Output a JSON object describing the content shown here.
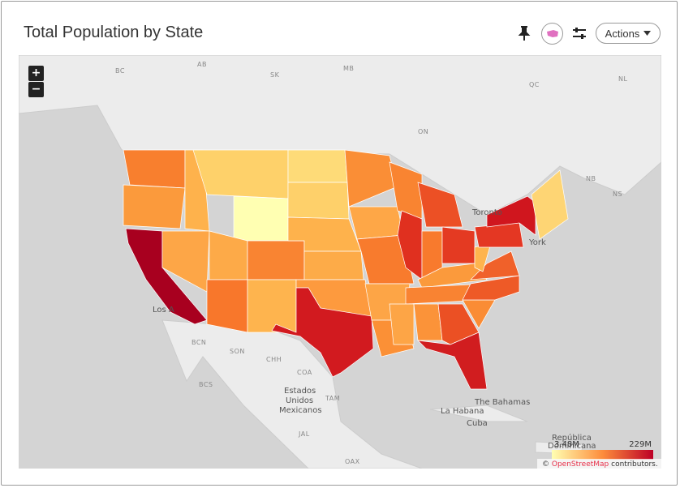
{
  "header": {
    "title": "Total Population by State",
    "actions": "Actions"
  },
  "controls": {
    "zoom_in": "+",
    "zoom_out": "−"
  },
  "map": {
    "labels": [
      "BC",
      "AB",
      "SK",
      "MB",
      "ON",
      "QC",
      "NL",
      "NB",
      "NS",
      "Toronto",
      "Los A",
      "York",
      "BCN",
      "SON",
      "CHH",
      "COA",
      "BCS",
      "TAM",
      "Estados",
      "Unidos",
      "Mexicanos",
      "The Bahamas",
      "La Habana",
      "Cuba",
      "República",
      "Dominicana",
      "JAL",
      "OAX"
    ]
  },
  "legend": {
    "min": "3.48M",
    "max": "229M"
  },
  "attribution": {
    "prefix": "©",
    "link": "OpenStreetMap",
    "suffix": "contributors."
  }
}
